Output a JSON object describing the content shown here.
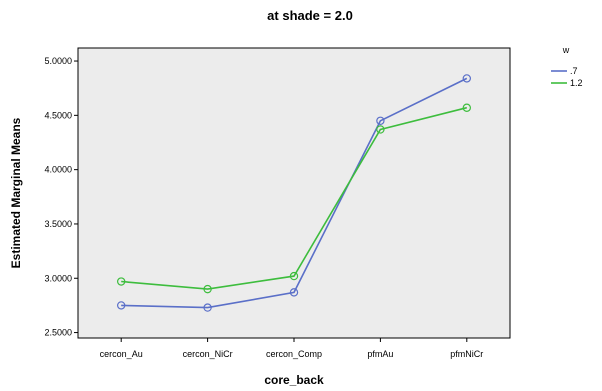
{
  "chart_data": {
    "type": "line",
    "title": "at shade = 2.0",
    "xlabel": "core_back",
    "ylabel": "Estimated Marginal Means",
    "categories": [
      "cercon_Au",
      "cercon_NiCr",
      "cercon_Comp",
      "pfmAu",
      "pfmNiCr"
    ],
    "ylim": [
      2.45,
      5.12
    ],
    "yticks": [
      2.5,
      3.0,
      3.5,
      4.0,
      4.5,
      5.0
    ],
    "ytick_labels": [
      "2.5000",
      "3.0000",
      "3.5000",
      "4.0000",
      "4.5000",
      "5.0000"
    ],
    "legend": {
      "title": "w",
      "placement": "right"
    },
    "series": [
      {
        "name": ".7",
        "color": "#5a6fc8",
        "values": [
          2.75,
          2.73,
          2.87,
          4.45,
          4.84
        ]
      },
      {
        "name": "1.2",
        "color": "#3dbd3d",
        "values": [
          2.97,
          2.9,
          3.02,
          4.37,
          4.57
        ]
      }
    ],
    "grid": false,
    "plot_background": "#ececec"
  }
}
